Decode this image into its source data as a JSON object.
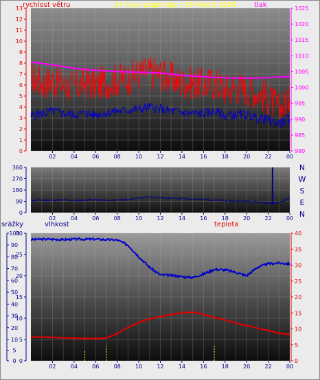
{
  "header": {
    "title": "24 hour graph day : 03 March 2024"
  },
  "colors": {
    "wind": "#ff0000",
    "wind_avg": "#0000cd",
    "pressure": "#ff00ff",
    "direction": "#00008b",
    "humidity": "#0000cd",
    "temperature": "#e00000",
    "rain": "#ffff00"
  },
  "panels": [
    {
      "left_title": "rychlost větru",
      "right_title": "tlak"
    },
    {
      "compass": [
        "N",
        "W",
        "S",
        "E",
        "N"
      ]
    },
    {
      "titles": [
        "srážky",
        "vlhkost",
        "teplota"
      ]
    }
  ],
  "chart_data": [
    {
      "type": "line",
      "title": "24 hour graph day : 03 March 2024",
      "x": [
        "00",
        "01",
        "02",
        "03",
        "04",
        "05",
        "06",
        "07",
        "08",
        "09",
        "10",
        "11",
        "12",
        "13",
        "14",
        "15",
        "16",
        "17",
        "18",
        "19",
        "20",
        "21",
        "22",
        "23",
        "24"
      ],
      "x_tick_labels": [
        "02",
        "04",
        "06",
        "08",
        "10",
        "12",
        "14",
        "16",
        "18",
        "20",
        "22",
        "00"
      ],
      "ylabel": "rychlost větru",
      "ylim": [
        0,
        13
      ],
      "y_ticks": [
        0,
        1,
        2,
        3,
        4,
        5,
        6,
        7,
        8,
        9,
        10,
        11,
        12,
        13
      ],
      "y2label": "tlak",
      "y2lim": [
        980,
        1025
      ],
      "y2_ticks": [
        980,
        985,
        990,
        995,
        1000,
        1005,
        1010,
        1015,
        1020,
        1025
      ],
      "grid": true,
      "series": [
        {
          "name": "rychlost větru",
          "axis": "left",
          "values": [
            6.8,
            6.2,
            6.4,
            6.0,
            5.8,
            6.2,
            6.0,
            6.3,
            6.5,
            6.6,
            7.0,
            7.2,
            7.0,
            6.6,
            6.2,
            6.2,
            6.0,
            6.2,
            5.6,
            5.8,
            5.6,
            5.3,
            4.8,
            3.8,
            4.6
          ]
        },
        {
          "axis": "left",
          "values": [
            3.2,
            3.4,
            3.6,
            3.4,
            3.3,
            3.4,
            3.3,
            3.5,
            3.6,
            3.7,
            3.8,
            4.0,
            3.8,
            3.6,
            3.5,
            3.4,
            3.4,
            3.6,
            3.2,
            3.3,
            3.3,
            3.0,
            2.8,
            2.5,
            2.9
          ]
        },
        {
          "name": "tlak",
          "axis": "right",
          "values": [
            1008.0,
            1007.6,
            1007.1,
            1006.6,
            1006.1,
            1005.7,
            1005.4,
            1005.2,
            1005.0,
            1004.9,
            1004.8,
            1004.7,
            1004.6,
            1004.2,
            1003.8,
            1003.6,
            1003.4,
            1003.2,
            1003.1,
            1003.0,
            1003.0,
            1003.0,
            1003.1,
            1003.3,
            1003.4
          ]
        }
      ]
    },
    {
      "type": "line",
      "x": [
        "00",
        "01",
        "02",
        "03",
        "04",
        "05",
        "06",
        "07",
        "08",
        "09",
        "10",
        "11",
        "12",
        "13",
        "14",
        "15",
        "16",
        "17",
        "18",
        "19",
        "20",
        "21",
        "22",
        "23",
        "24"
      ],
      "x_tick_labels": [
        "02",
        "04",
        "06",
        "08",
        "10",
        "12",
        "14",
        "16",
        "18",
        "20",
        "22",
        "00"
      ],
      "ylim": [
        0,
        360
      ],
      "y_ticks": [
        0,
        90,
        180,
        270,
        360
      ],
      "grid": true,
      "series": [
        {
          "values": [
            95,
            100,
            98,
            100,
            96,
            100,
            102,
            98,
            100,
            105,
            115,
            125,
            120,
            115,
            112,
            110,
            105,
            100,
            95,
            90,
            92,
            85,
            75,
            80,
            115
          ]
        }
      ],
      "annotations": [
        {
          "x": "22.4",
          "value": 360
        }
      ]
    },
    {
      "type": "line",
      "x": [
        "00",
        "01",
        "02",
        "03",
        "04",
        "05",
        "06",
        "07",
        "08",
        "09",
        "10",
        "11",
        "12",
        "13",
        "14",
        "15",
        "16",
        "17",
        "18",
        "19",
        "20",
        "21",
        "22",
        "23",
        "24"
      ],
      "x_tick_labels": [
        "02",
        "04",
        "06",
        "08",
        "10",
        "12",
        "14",
        "16",
        "18",
        "20",
        "22",
        "00"
      ],
      "ylabel": "vlhkost",
      "ylim": [
        0,
        30
      ],
      "y_ticks": [
        0,
        5,
        10,
        15,
        20,
        25,
        30
      ],
      "y2label": "teplota",
      "y2lim": [
        0,
        40
      ],
      "y2_ticks": [
        0,
        5,
        10,
        15,
        20,
        25,
        30,
        35,
        40
      ],
      "y3label": "srážky",
      "y3lim": [
        0,
        100
      ],
      "y3_ticks": [
        0,
        5,
        10,
        20,
        30,
        40,
        50,
        60,
        70,
        80,
        90,
        100
      ],
      "grid": true,
      "series": [
        {
          "name": "vlhkost",
          "axis": "left",
          "values": [
            28.5,
            28.6,
            28.6,
            28.5,
            28.6,
            28.6,
            28.6,
            28.5,
            28.4,
            27.2,
            24.5,
            22.0,
            20.2,
            20.1,
            19.8,
            19.6,
            20.4,
            21.5,
            21.4,
            20.8,
            20.0,
            22.0,
            22.8,
            23.0,
            22.8
          ]
        },
        {
          "name": "teplota",
          "axis": "right",
          "values": [
            7.5,
            7.4,
            7.3,
            7.2,
            7.1,
            7.0,
            7.0,
            7.1,
            8.5,
            10.5,
            12.0,
            13.2,
            13.8,
            14.5,
            15.0,
            15.2,
            14.6,
            13.6,
            12.8,
            11.8,
            11.0,
            10.2,
            9.5,
            8.6,
            8.2
          ]
        },
        {
          "name": "srážky",
          "axis": "left",
          "bars": true,
          "x": [
            "05",
            "07",
            "17"
          ],
          "values": [
            2.5,
            3.5,
            3.5
          ]
        }
      ]
    }
  ]
}
